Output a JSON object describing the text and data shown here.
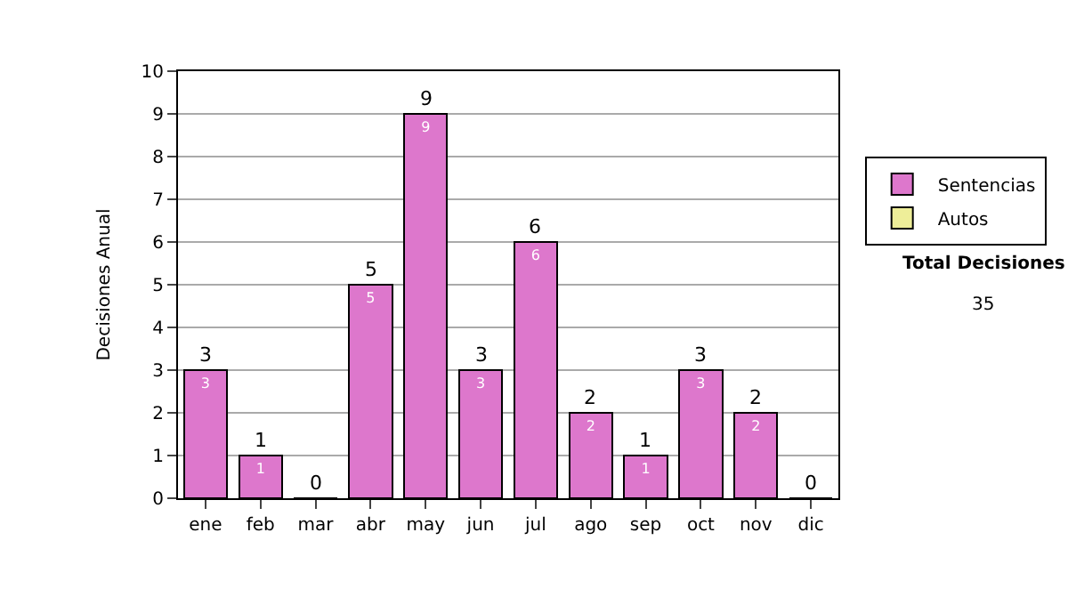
{
  "chart_data": {
    "type": "bar",
    "stacked": true,
    "ylabel": "Decisiones Anual",
    "categories": [
      "ene",
      "feb",
      "mar",
      "abr",
      "may",
      "jun",
      "jul",
      "ago",
      "sep",
      "oct",
      "nov",
      "dic"
    ],
    "series": [
      {
        "name": "Sentencias",
        "color": "#dd77cc",
        "values": [
          3,
          1,
          0,
          5,
          9,
          3,
          6,
          2,
          1,
          3,
          2,
          0
        ],
        "value_labels": [
          "3",
          "1",
          null,
          "5",
          "9",
          "3",
          "6",
          "2",
          "1",
          "3",
          "2",
          null
        ]
      },
      {
        "name": "Autos",
        "color": "#eeee99",
        "values": [
          null,
          null,
          null,
          null,
          null,
          null,
          null,
          null,
          null,
          null,
          null,
          null
        ]
      }
    ],
    "totals": [
      "3",
      "1",
      "0",
      "5",
      "9",
      "3",
      "6",
      "2",
      "1",
      "3",
      "2",
      "0"
    ],
    "ylim": [
      0,
      10
    ],
    "yticks": [
      0,
      1,
      2,
      3,
      4,
      5,
      6,
      7,
      8,
      9,
      10
    ],
    "grid": "y",
    "legend": "right",
    "annotations": [
      "Total Decisiones",
      "35"
    ]
  }
}
